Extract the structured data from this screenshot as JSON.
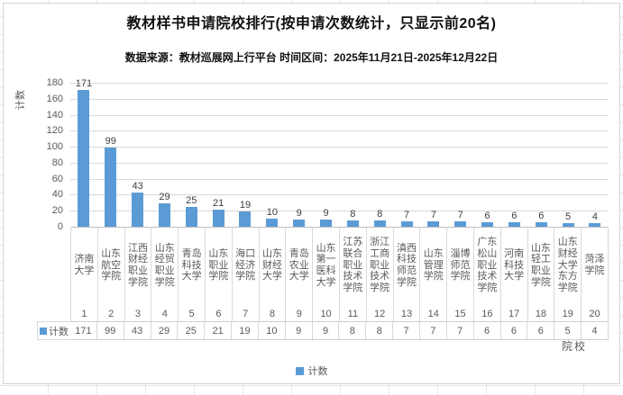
{
  "title": "教材样书申请院校排行(按申请次数统计，只显示前20名)",
  "subtitle": "数据来源：教材巡展网上行平台  时间区间：2025年11月21日-2025年12月22日",
  "colors": {
    "bar": "#5B9BD5",
    "gridline": "#D9D9D9",
    "axis_text": "#595959",
    "table_border": "#D9D9D9"
  },
  "chart_data": {
    "type": "bar",
    "title": "教材样书申请院校排行(按申请次数统计，只显示前20名)",
    "subtitle": "数据来源：教材巡展网上行平台  时间区间：2025年11月21日-2025年12月22日",
    "categories": [
      "济南大学",
      "山东航空学院",
      "江西财经职业学院",
      "山东经贸职业学院",
      "青岛科技大学",
      "山东职业学院",
      "海口经济学院",
      "山东财经大学",
      "青岛农业大学",
      "山东第一医科大学",
      "江苏联合职业技术学院",
      "浙江工商职业技术学院",
      "滇西科技师范学院",
      "山东管理学院",
      "淄博师范学院",
      "广东松山职业技术学院",
      "河南科技大学",
      "山东轻工职业学院",
      "山东财经大学东方学院",
      "菏泽学院"
    ],
    "ranks": [
      1,
      2,
      3,
      4,
      5,
      6,
      7,
      8,
      9,
      10,
      11,
      12,
      13,
      14,
      15,
      16,
      17,
      18,
      19,
      20
    ],
    "values": [
      171,
      99,
      43,
      29,
      25,
      21,
      19,
      10,
      9,
      9,
      8,
      8,
      7,
      7,
      7,
      6,
      6,
      6,
      5,
      4
    ],
    "series_name": "计数",
    "ylabel": "计数",
    "xlabel": "院校",
    "ylim": [
      0,
      180
    ],
    "ytick_step": 20,
    "grid": true,
    "data_table": true,
    "legend": [
      "计数"
    ],
    "legend_position": "bottom"
  }
}
